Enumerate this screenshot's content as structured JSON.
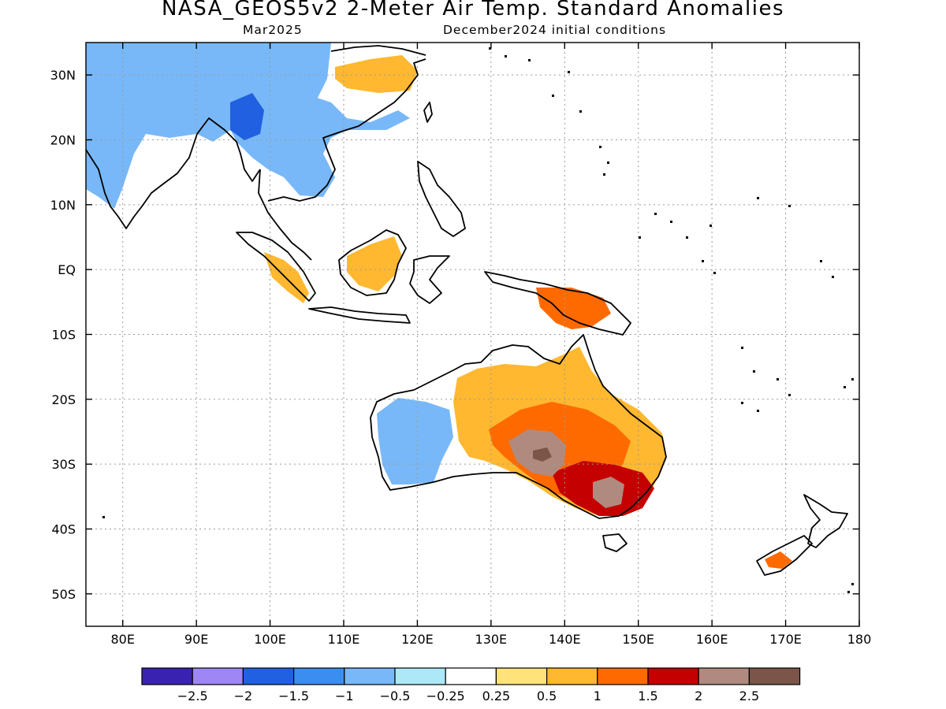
{
  "title": "NASA_GEOS5v2 2-Meter Air Temp. Standard Anomalies",
  "subtitle_left": "Mar2025",
  "subtitle_right": "December2024 initial conditions",
  "map": {
    "lon_range": [
      75,
      180
    ],
    "lat_range": [
      -55,
      35
    ],
    "lon_ticks": [
      {
        "v": 80,
        "label": "80E"
      },
      {
        "v": 90,
        "label": "90E"
      },
      {
        "v": 100,
        "label": "100E"
      },
      {
        "v": 110,
        "label": "110E"
      },
      {
        "v": 120,
        "label": "120E"
      },
      {
        "v": 130,
        "label": "130E"
      },
      {
        "v": 140,
        "label": "140E"
      },
      {
        "v": 150,
        "label": "150E"
      },
      {
        "v": 160,
        "label": "160E"
      },
      {
        "v": 170,
        "label": "170E"
      },
      {
        "v": 180,
        "label": "180"
      }
    ],
    "lat_ticks": [
      {
        "v": 30,
        "label": "30N"
      },
      {
        "v": 20,
        "label": "20N"
      },
      {
        "v": 10,
        "label": "10N"
      },
      {
        "v": 0,
        "label": "EQ"
      },
      {
        "v": -10,
        "label": "10S"
      },
      {
        "v": -20,
        "label": "20S"
      },
      {
        "v": -30,
        "label": "30S"
      },
      {
        "v": -40,
        "label": "40S"
      },
      {
        "v": -50,
        "label": "50S"
      }
    ],
    "grid": "dotted"
  },
  "colorbar": {
    "colors": [
      "#3a22b0",
      "#9e86f5",
      "#2160e0",
      "#3b8ef0",
      "#78b8f8",
      "#ace8f8",
      "#ffffff",
      "#ffe27a",
      "#ffb830",
      "#ff6a00",
      "#c40000",
      "#b08a7e",
      "#7a5548"
    ],
    "labels": [
      "-2.5",
      "-2",
      "-1.5",
      "-1",
      "-0.5",
      "-0.25",
      "0.25",
      "0.5",
      "1",
      "1.5",
      "2",
      "2.5"
    ]
  },
  "anomaly_regions": [
    {
      "name": "india-west-tibet",
      "level": -1
    },
    {
      "name": "south-china-indochina",
      "level": -1
    },
    {
      "name": "myanmar-core",
      "level": -2
    },
    {
      "name": "east-china",
      "level": 0.5
    },
    {
      "name": "borneo",
      "level": 0.5
    },
    {
      "name": "sumatra",
      "level": 0.5
    },
    {
      "name": "new-guinea",
      "level": 1
    },
    {
      "name": "western-australia",
      "level": -1
    },
    {
      "name": "interior-australia",
      "level": 0.5
    },
    {
      "name": "central-australia",
      "level": 1
    },
    {
      "name": "southeast-australia",
      "level": 1.5
    },
    {
      "name": "central-australia-core",
      "level": 2
    },
    {
      "name": "central-australia-peak",
      "level": 2.5
    },
    {
      "name": "new-zealand",
      "level": 1
    }
  ]
}
